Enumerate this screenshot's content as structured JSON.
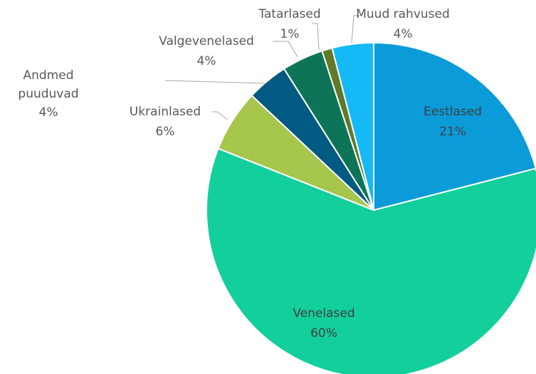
{
  "chart_data": {
    "type": "pie",
    "categories": [
      "Eestlased",
      "Venelased",
      "Ukrainlased",
      "Andmed puuduvad",
      "Valgevenelased",
      "Tatarlased",
      "Muud rahvused"
    ],
    "values": [
      21,
      60,
      6,
      4,
      4,
      1,
      4
    ],
    "value_labels": [
      "21%",
      "60%",
      "6%",
      "4%",
      "4%",
      "1%",
      "4%"
    ],
    "colors": [
      "#0a9bd8",
      "#12cf9c",
      "#a6c64c",
      "#005a82",
      "#0e7457",
      "#5f7a2a",
      "#14b9f5"
    ]
  }
}
